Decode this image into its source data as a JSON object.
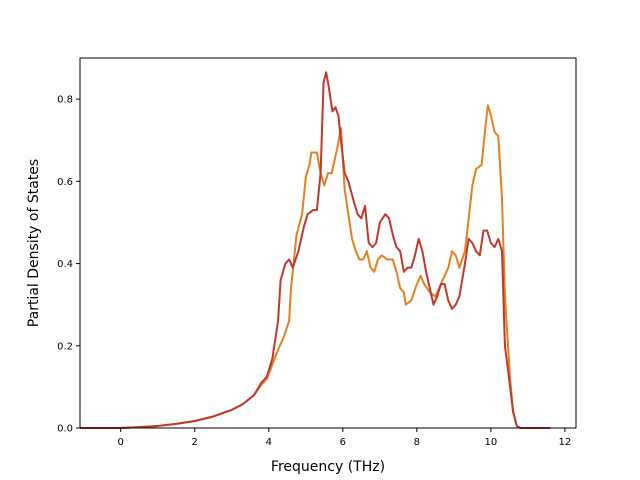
{
  "chart_data": {
    "type": "line",
    "title": "",
    "xlabel": "Frequency (THz)",
    "ylabel": "Partial Density of States",
    "xlim": [
      -1.1,
      12.3
    ],
    "ylim": [
      0.0,
      0.9
    ],
    "xticks": [
      0,
      2,
      4,
      6,
      8,
      10,
      12
    ],
    "xtick_labels": [
      "0",
      "2",
      "4",
      "6",
      "8",
      "10",
      "12"
    ],
    "yticks": [
      0.0,
      0.2,
      0.4,
      0.6,
      0.8
    ],
    "ytick_labels": [
      "0.0",
      "0.2",
      "0.4",
      "0.6",
      "0.8"
    ],
    "grid": false,
    "legend": "none",
    "series": [
      {
        "color": "#e67e22",
        "points": [
          [
            -1.1,
            0.0
          ],
          [
            0.0,
            0.0
          ],
          [
            0.5,
            0.002
          ],
          [
            1.0,
            0.005
          ],
          [
            1.5,
            0.01
          ],
          [
            2.0,
            0.017
          ],
          [
            2.5,
            0.028
          ],
          [
            3.0,
            0.044
          ],
          [
            3.3,
            0.058
          ],
          [
            3.6,
            0.08
          ],
          [
            3.8,
            0.105
          ],
          [
            3.95,
            0.12
          ],
          [
            4.1,
            0.155
          ],
          [
            4.25,
            0.19
          ],
          [
            4.4,
            0.22
          ],
          [
            4.55,
            0.26
          ],
          [
            4.6,
            0.34
          ],
          [
            4.75,
            0.47
          ],
          [
            4.9,
            0.52
          ],
          [
            5.0,
            0.61
          ],
          [
            5.1,
            0.64
          ],
          [
            5.15,
            0.67
          ],
          [
            5.3,
            0.67
          ],
          [
            5.4,
            0.62
          ],
          [
            5.5,
            0.59
          ],
          [
            5.6,
            0.62
          ],
          [
            5.7,
            0.62
          ],
          [
            5.85,
            0.68
          ],
          [
            5.95,
            0.73
          ],
          [
            6.05,
            0.58
          ],
          [
            6.15,
            0.52
          ],
          [
            6.25,
            0.46
          ],
          [
            6.35,
            0.43
          ],
          [
            6.45,
            0.41
          ],
          [
            6.55,
            0.41
          ],
          [
            6.65,
            0.43
          ],
          [
            6.75,
            0.39
          ],
          [
            6.85,
            0.38
          ],
          [
            6.95,
            0.41
          ],
          [
            7.05,
            0.42
          ],
          [
            7.2,
            0.41
          ],
          [
            7.35,
            0.41
          ],
          [
            7.45,
            0.38
          ],
          [
            7.55,
            0.34
          ],
          [
            7.65,
            0.33
          ],
          [
            7.7,
            0.3
          ],
          [
            7.85,
            0.31
          ],
          [
            8.0,
            0.35
          ],
          [
            8.1,
            0.37
          ],
          [
            8.2,
            0.35
          ],
          [
            8.35,
            0.33
          ],
          [
            8.5,
            0.32
          ],
          [
            8.6,
            0.34
          ],
          [
            8.7,
            0.36
          ],
          [
            8.85,
            0.39
          ],
          [
            8.95,
            0.43
          ],
          [
            9.05,
            0.42
          ],
          [
            9.15,
            0.39
          ],
          [
            9.3,
            0.43
          ],
          [
            9.4,
            0.51
          ],
          [
            9.5,
            0.59
          ],
          [
            9.6,
            0.63
          ],
          [
            9.75,
            0.64
          ],
          [
            9.85,
            0.73
          ],
          [
            9.92,
            0.785
          ],
          [
            10.0,
            0.76
          ],
          [
            10.1,
            0.72
          ],
          [
            10.2,
            0.71
          ],
          [
            10.3,
            0.56
          ],
          [
            10.38,
            0.32
          ],
          [
            10.45,
            0.22
          ],
          [
            10.52,
            0.12
          ],
          [
            10.6,
            0.04
          ],
          [
            10.7,
            0.005
          ],
          [
            10.8,
            0.0
          ],
          [
            11.6,
            0.0
          ]
        ]
      },
      {
        "color": "#c0392b",
        "points": [
          [
            -1.1,
            0.0
          ],
          [
            0.0,
            0.0
          ],
          [
            0.5,
            0.002
          ],
          [
            1.0,
            0.005
          ],
          [
            1.5,
            0.01
          ],
          [
            2.0,
            0.017
          ],
          [
            2.5,
            0.028
          ],
          [
            3.0,
            0.044
          ],
          [
            3.3,
            0.058
          ],
          [
            3.6,
            0.08
          ],
          [
            3.8,
            0.11
          ],
          [
            3.95,
            0.125
          ],
          [
            4.1,
            0.17
          ],
          [
            4.25,
            0.26
          ],
          [
            4.32,
            0.36
          ],
          [
            4.45,
            0.4
          ],
          [
            4.55,
            0.41
          ],
          [
            4.65,
            0.39
          ],
          [
            4.8,
            0.43
          ],
          [
            4.95,
            0.49
          ],
          [
            5.05,
            0.52
          ],
          [
            5.2,
            0.53
          ],
          [
            5.3,
            0.53
          ],
          [
            5.4,
            0.62
          ],
          [
            5.48,
            0.84
          ],
          [
            5.55,
            0.865
          ],
          [
            5.62,
            0.83
          ],
          [
            5.72,
            0.77
          ],
          [
            5.8,
            0.78
          ],
          [
            5.88,
            0.76
          ],
          [
            5.95,
            0.7
          ],
          [
            6.05,
            0.62
          ],
          [
            6.15,
            0.6
          ],
          [
            6.3,
            0.55
          ],
          [
            6.4,
            0.52
          ],
          [
            6.5,
            0.51
          ],
          [
            6.6,
            0.54
          ],
          [
            6.7,
            0.45
          ],
          [
            6.8,
            0.44
          ],
          [
            6.9,
            0.45
          ],
          [
            7.0,
            0.5
          ],
          [
            7.15,
            0.52
          ],
          [
            7.25,
            0.51
          ],
          [
            7.35,
            0.47
          ],
          [
            7.45,
            0.44
          ],
          [
            7.55,
            0.43
          ],
          [
            7.65,
            0.38
          ],
          [
            7.75,
            0.39
          ],
          [
            7.85,
            0.39
          ],
          [
            7.95,
            0.42
          ],
          [
            8.05,
            0.46
          ],
          [
            8.15,
            0.43
          ],
          [
            8.25,
            0.38
          ],
          [
            8.35,
            0.34
          ],
          [
            8.45,
            0.3
          ],
          [
            8.55,
            0.32
          ],
          [
            8.65,
            0.35
          ],
          [
            8.75,
            0.35
          ],
          [
            8.85,
            0.31
          ],
          [
            8.95,
            0.29
          ],
          [
            9.05,
            0.3
          ],
          [
            9.15,
            0.32
          ],
          [
            9.3,
            0.4
          ],
          [
            9.4,
            0.46
          ],
          [
            9.5,
            0.45
          ],
          [
            9.6,
            0.43
          ],
          [
            9.7,
            0.42
          ],
          [
            9.8,
            0.48
          ],
          [
            9.9,
            0.48
          ],
          [
            10.0,
            0.45
          ],
          [
            10.1,
            0.44
          ],
          [
            10.2,
            0.46
          ],
          [
            10.3,
            0.43
          ],
          [
            10.38,
            0.2
          ],
          [
            10.45,
            0.15
          ],
          [
            10.52,
            0.1
          ],
          [
            10.6,
            0.04
          ],
          [
            10.7,
            0.005
          ],
          [
            10.8,
            0.0
          ],
          [
            11.6,
            0.0
          ]
        ]
      }
    ]
  }
}
